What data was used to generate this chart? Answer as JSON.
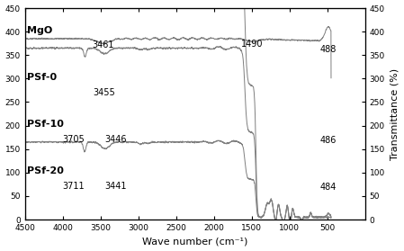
{
  "xlabel": "Wave number (cm⁻¹)",
  "ylabel": "Transmittance (%)",
  "xlim": [
    4500,
    0
  ],
  "ylim": [
    0,
    450
  ],
  "yticks": [
    0,
    50,
    100,
    150,
    200,
    250,
    300,
    350,
    400,
    450
  ],
  "xticks": [
    4500,
    4000,
    3500,
    3000,
    2500,
    2000,
    1500,
    1000,
    500
  ],
  "spectra": [
    {
      "name": "MgO",
      "baseline": 385,
      "color": "#808080",
      "peak_dip_3461": true,
      "peak_dip_1490": true,
      "peak_488": true
    },
    {
      "name": "PSf-0",
      "baseline": 285,
      "color": "#808080",
      "peak_dip_3455": true,
      "strong_abs_1500": true
    },
    {
      "name": "PSf-10",
      "baseline": 185,
      "color": "#808080",
      "peak_dip_3705": true,
      "peak_dip_3446": true,
      "strong_abs_1500": true,
      "peak_486": true
    },
    {
      "name": "PSf-20",
      "baseline": 85,
      "color": "#808080",
      "peak_dip_3711": true,
      "peak_dip_3441": true,
      "strong_abs_1500": true,
      "peak_484": true
    }
  ],
  "line_color": "#7f7f7f",
  "background_color": "#ffffff",
  "label_fontsize": 7,
  "name_fontsize": 8,
  "axis_label_fontsize": 8
}
